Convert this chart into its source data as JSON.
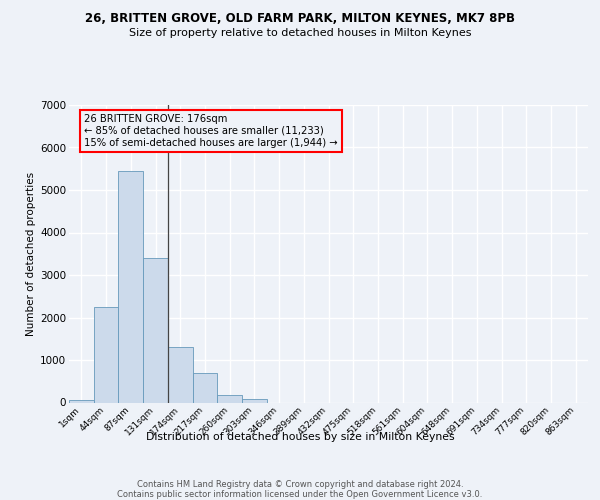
{
  "title_line1": "26, BRITTEN GROVE, OLD FARM PARK, MILTON KEYNES, MK7 8PB",
  "title_line2": "Size of property relative to detached houses in Milton Keynes",
  "xlabel": "Distribution of detached houses by size in Milton Keynes",
  "ylabel": "Number of detached properties",
  "categories": [
    "1sqm",
    "44sqm",
    "87sqm",
    "131sqm",
    "174sqm",
    "217sqm",
    "260sqm",
    "303sqm",
    "346sqm",
    "389sqm",
    "432sqm",
    "475sqm",
    "518sqm",
    "561sqm",
    "604sqm",
    "648sqm",
    "691sqm",
    "734sqm",
    "777sqm",
    "820sqm",
    "863sqm"
  ],
  "values": [
    60,
    2250,
    5450,
    3400,
    1300,
    700,
    175,
    90,
    0,
    0,
    0,
    0,
    0,
    0,
    0,
    0,
    0,
    0,
    0,
    0,
    0
  ],
  "bar_color": "#ccdaeb",
  "bar_edge_color": "#6699bb",
  "background_color": "#eef2f8",
  "grid_color": "#ffffff",
  "annotation_line1": "26 BRITTEN GROVE: 176sqm",
  "annotation_line2": "← 85% of detached houses are smaller (11,233)",
  "annotation_line3": "15% of semi-detached houses are larger (1,944) →",
  "vline_x": 3.5,
  "ylim": [
    0,
    7000
  ],
  "yticks": [
    0,
    1000,
    2000,
    3000,
    4000,
    5000,
    6000,
    7000
  ],
  "footer_line1": "Contains HM Land Registry data © Crown copyright and database right 2024.",
  "footer_line2": "Contains public sector information licensed under the Open Government Licence v3.0."
}
